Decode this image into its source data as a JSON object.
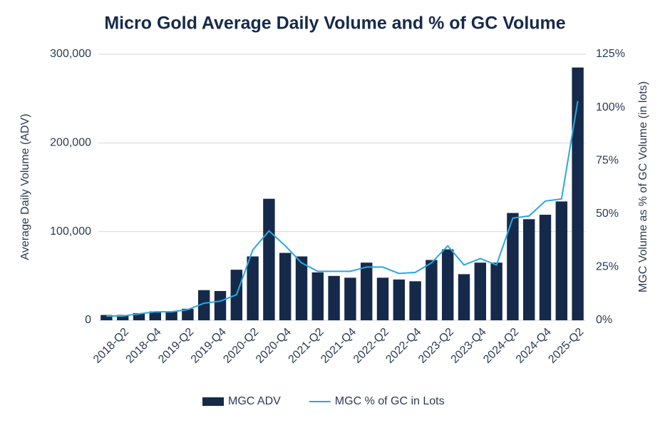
{
  "chart_data": {
    "type": "bar",
    "title": "Micro Gold Average Daily Volume and % of GC Volume",
    "y_label": "Average Daily Volume (ADV)",
    "y2_label": "MGC Volume as % of GC Volume (in lots)",
    "categories": [
      null,
      "2018-Q2",
      null,
      "2018-Q4",
      null,
      "2019-Q2",
      null,
      "2019-Q4",
      null,
      "2020-Q2",
      null,
      "2020-Q4",
      null,
      "2021-Q2",
      null,
      "2021-Q4",
      null,
      "2022-Q2",
      null,
      "2022-Q4",
      null,
      "2023-Q2",
      null,
      "2023-Q4",
      null,
      "2024-Q2",
      null,
      "2024-Q4",
      null,
      "2025-Q2"
    ],
    "series": [
      {
        "name": "MGC ADV",
        "type": "bar",
        "color": "#152a4a",
        "values": [
          6000,
          6000,
          8000,
          10000,
          10000,
          13000,
          34000,
          33000,
          57000,
          72000,
          137000,
          76000,
          72000,
          54000,
          50000,
          48000,
          65000,
          48000,
          46000,
          44000,
          68000,
          80000,
          52000,
          65000,
          65000,
          121000,
          114000,
          119000,
          134000,
          285000
        ]
      },
      {
        "name": "MGC % of GC in Lots",
        "type": "line",
        "axis": "y2",
        "color": "#29a8e0",
        "values": [
          2,
          2,
          3,
          4,
          4,
          5,
          8,
          9,
          12,
          33,
          42,
          35,
          27,
          23,
          23,
          23,
          25,
          25,
          22,
          22.5,
          27,
          35,
          26,
          29,
          26,
          48,
          49,
          56,
          57,
          103
        ]
      }
    ],
    "ylim": [
      0,
      300000
    ],
    "yticks": [
      0,
      {
        "value": 100000,
        "label": "100,000"
      },
      {
        "value": 200000,
        "label": "200,000"
      },
      {
        "value": 300000,
        "label": "300,000"
      }
    ],
    "y2lim": [
      0,
      125
    ],
    "y2ticks": [
      {
        "value": 0,
        "label": "0%"
      },
      {
        "value": 25,
        "label": "25%"
      },
      {
        "value": 50,
        "label": "50%"
      },
      {
        "value": 75,
        "label": "75%"
      },
      {
        "value": 100,
        "label": "100%"
      },
      {
        "value": 125,
        "label": "125%"
      }
    ],
    "grid": true,
    "legend": "bottom"
  }
}
